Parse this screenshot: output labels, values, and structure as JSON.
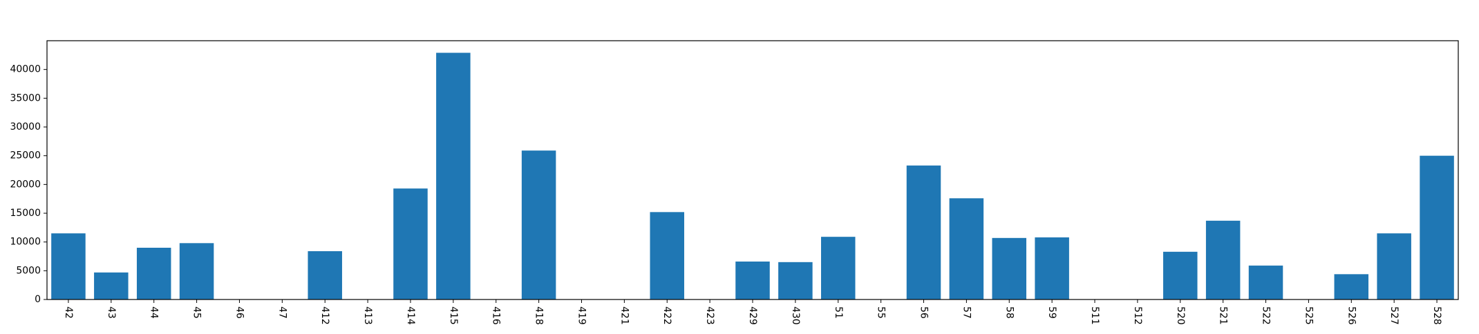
{
  "chart_data": {
    "type": "bar",
    "title": "",
    "xlabel": "",
    "ylabel": "",
    "categories": [
      "42",
      "43",
      "44",
      "45",
      "46",
      "47",
      "412",
      "413",
      "414",
      "415",
      "416",
      "418",
      "419",
      "421",
      "422",
      "423",
      "429",
      "430",
      "51",
      "55",
      "56",
      "57",
      "58",
      "59",
      "511",
      "512",
      "520",
      "521",
      "522",
      "525",
      "526",
      "527",
      "528"
    ],
    "values": [
      11500,
      4700,
      9000,
      9800,
      0,
      0,
      8400,
      0,
      19300,
      42900,
      0,
      25900,
      0,
      0,
      15200,
      0,
      6600,
      6500,
      10900,
      0,
      23300,
      17600,
      10700,
      10800,
      0,
      0,
      8300,
      13700,
      5900,
      0,
      4400,
      11500,
      25000
    ],
    "ylim": [
      0,
      45000
    ],
    "yticks": [
      0,
      5000,
      10000,
      15000,
      20000,
      25000,
      30000,
      35000,
      40000
    ],
    "grid": false,
    "legend": "none",
    "bar_color": "#1f77b4",
    "axis_color": "#000000"
  }
}
